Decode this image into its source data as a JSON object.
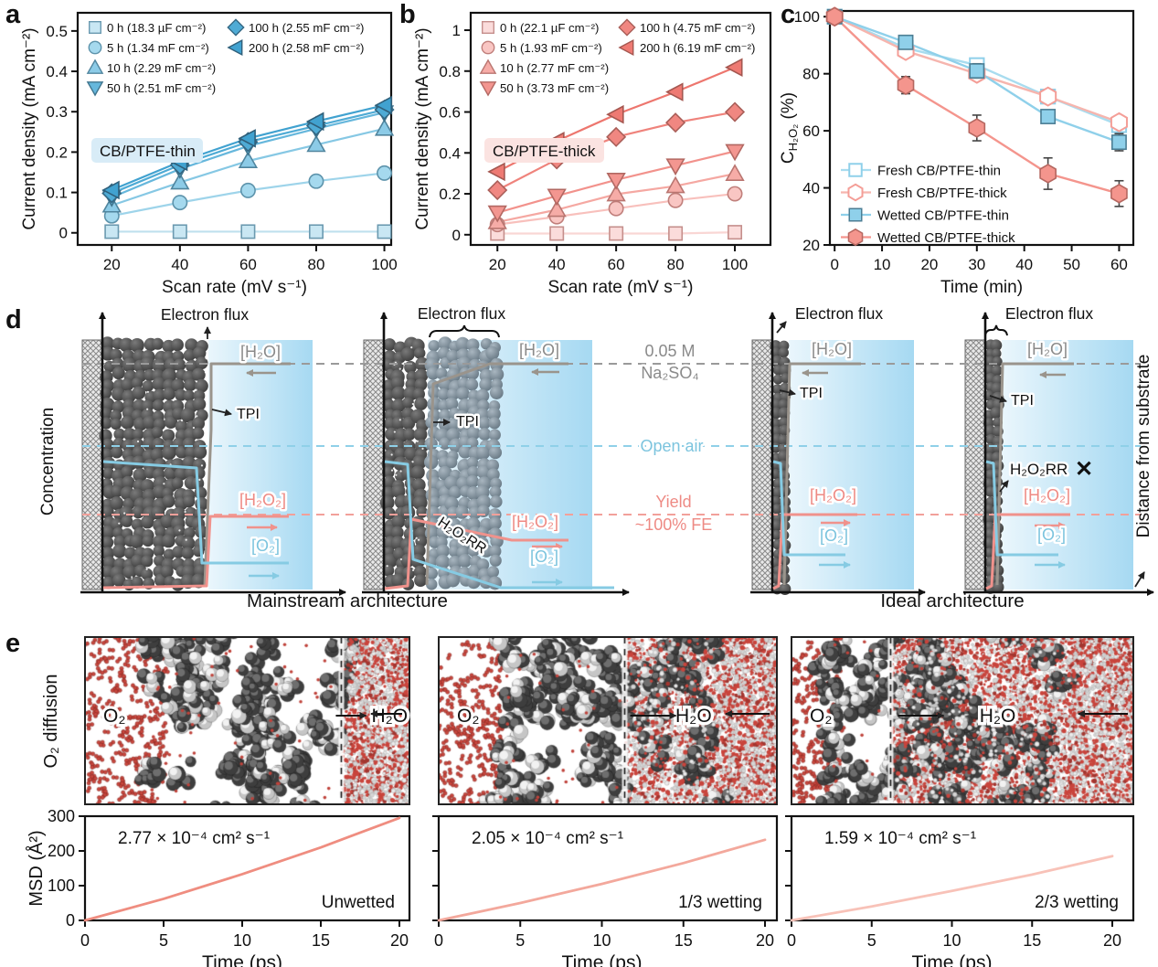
{
  "letters": {
    "a": "a",
    "b": "b",
    "c": "c",
    "d": "d",
    "e": "e"
  },
  "chart_data": [
    {
      "id": "a",
      "type": "scatter",
      "title": "CB/PTFE-thin",
      "xlabel": "Scan rate (mV s⁻¹)",
      "ylabel": "Current density (mA cm⁻²)",
      "x": [
        20,
        40,
        60,
        80,
        100
      ],
      "xticks": [
        20,
        40,
        60,
        80,
        100
      ],
      "yticks": [
        0.0,
        0.1,
        0.2,
        0.3,
        0.4,
        0.5
      ],
      "xlim": [
        10,
        102
      ],
      "ylim": [
        -0.03,
        0.545
      ],
      "series": [
        {
          "name": "0 h (18.3 µF cm⁻²)",
          "marker": "square",
          "fill": "#c9e7f3",
          "stroke": "#6b9ab0",
          "line": "#bfe0ee",
          "values": [
            0.003,
            0.003,
            0.003,
            0.003,
            0.003
          ]
        },
        {
          "name": "5 h (1.34 mF cm⁻²)",
          "marker": "circle",
          "fill": "#a5d9ee",
          "stroke": "#5d93ab",
          "line": "#9ed4ea",
          "values": [
            0.042,
            0.075,
            0.105,
            0.128,
            0.148
          ]
        },
        {
          "name": "10 h (2.29 mF cm⁻²)",
          "marker": "triup",
          "fill": "#8ccbe7",
          "stroke": "#50859e",
          "line": "#86c8e4",
          "values": [
            0.068,
            0.125,
            0.178,
            0.218,
            0.258
          ]
        },
        {
          "name": "50 h (2.51 mF cm⁻²)",
          "marker": "tridown",
          "fill": "#66b7dc",
          "stroke": "#40758e",
          "line": "#66b7dc",
          "values": [
            0.088,
            0.158,
            0.215,
            0.258,
            0.298
          ]
        },
        {
          "name": "100 h (2.55 mF cm⁻²)",
          "marker": "diamond",
          "fill": "#4fabd5",
          "stroke": "#356884",
          "line": "#4fabd5",
          "values": [
            0.098,
            0.168,
            0.225,
            0.265,
            0.305
          ]
        },
        {
          "name": "200 h (2.58 mF cm⁻²)",
          "marker": "trileft",
          "fill": "#41a2d0",
          "stroke": "#2f5f7a",
          "line": "#41a2d0",
          "values": [
            0.106,
            0.176,
            0.234,
            0.276,
            0.316
          ]
        }
      ]
    },
    {
      "id": "b",
      "type": "scatter",
      "title": "CB/PTFE-thick",
      "xlabel": "Scan rate (mV s⁻¹)",
      "ylabel": "Current density (mA cm⁻²)",
      "x": [
        20,
        40,
        60,
        80,
        100
      ],
      "xticks": [
        20,
        40,
        60,
        80,
        100
      ],
      "yticks": [
        0.0,
        0.2,
        0.4,
        0.6,
        0.8,
        1.0
      ],
      "xlim": [
        11,
        112
      ],
      "ylim": [
        -0.05,
        1.085
      ],
      "series": [
        {
          "name": "0 h (22.1 µF cm⁻²)",
          "marker": "square",
          "fill": "#fbdcdb",
          "stroke": "#c58f8c",
          "line": "#f9d6d4",
          "values": [
            0.006,
            0.006,
            0.006,
            0.006,
            0.012
          ]
        },
        {
          "name": "5 h (1.93 mF cm⁻²)",
          "marker": "circle",
          "fill": "#f9c6c3",
          "stroke": "#c07f7b",
          "line": "#f8c0bc",
          "values": [
            0.05,
            0.088,
            0.128,
            0.168,
            0.2
          ]
        },
        {
          "name": "10 h (2.77 mF cm⁻²)",
          "marker": "triup",
          "fill": "#f6aca7",
          "stroke": "#b97570",
          "line": "#f5a8a2",
          "values": [
            0.062,
            0.122,
            0.198,
            0.238,
            0.298
          ]
        },
        {
          "name": "50 h (3.73 mF cm⁻²)",
          "marker": "tridown",
          "fill": "#f39690",
          "stroke": "#b26862",
          "line": "#f2928c",
          "values": [
            0.108,
            0.19,
            0.268,
            0.338,
            0.408
          ]
        },
        {
          "name": "100 h (4.75 mF cm⁻²)",
          "marker": "diamond",
          "fill": "#f08781",
          "stroke": "#aa5f59",
          "line": "#ef837c",
          "values": [
            0.218,
            0.368,
            0.478,
            0.548,
            0.6
          ]
        },
        {
          "name": "200 h (6.19 mF cm⁻²)",
          "marker": "trileft",
          "fill": "#ee7a73",
          "stroke": "#a45750",
          "line": "#ed766e",
          "values": [
            0.308,
            0.458,
            0.588,
            0.698,
            0.818
          ]
        }
      ]
    },
    {
      "id": "c",
      "type": "line",
      "xlabel": "Time (min)",
      "ylabel_parts": [
        "C",
        "H₂O₂",
        " (%)"
      ],
      "x": [
        0,
        15,
        30,
        45,
        60
      ],
      "xticks": [
        0,
        10,
        20,
        30,
        40,
        50,
        60
      ],
      "yticks": [
        20,
        40,
        60,
        80,
        100
      ],
      "xlim": [
        -1,
        63
      ],
      "ylim": [
        20,
        102
      ],
      "series": [
        {
          "name": "Fresh CB/PTFE-thin",
          "marker": "square",
          "open": true,
          "line": "#a8dcef",
          "stroke": "#8fd0ea",
          "fill": "#ffffff",
          "err_color": "#8fd0ea",
          "values": [
            100,
            89,
            83,
            72,
            62
          ],
          "err": [
            0,
            1.5,
            2,
            2,
            2
          ]
        },
        {
          "name": "Fresh CB/PTFE-thick",
          "marker": "hex",
          "open": true,
          "line": "#f6b5ae",
          "stroke": "#f49e97",
          "fill": "#ffffff",
          "err_color": "#f4a09a",
          "values": [
            100,
            88,
            80,
            72,
            63
          ],
          "err": [
            0,
            2,
            2,
            2,
            2
          ]
        },
        {
          "name": "Wetted CB/PTFE-thin",
          "marker": "square",
          "open": false,
          "line": "#8fd0ea",
          "stroke": "#4c7e94",
          "fill": "#8fd0ea",
          "err_color": "#444444",
          "values": [
            100,
            91,
            81,
            65,
            56
          ],
          "err": [
            0,
            2,
            2.5,
            2,
            3
          ]
        },
        {
          "name": "Wetted CB/PTFE-thick",
          "marker": "hex",
          "open": false,
          "line": "#f4958d",
          "stroke": "#b56760",
          "fill": "#f4958d",
          "err_color": "#444444",
          "values": [
            100,
            76,
            61,
            45,
            38
          ],
          "err": [
            0,
            3,
            4.5,
            5.5,
            4.5
          ]
        }
      ]
    },
    {
      "id": "msd1",
      "type": "line",
      "xlabel": "Time (ps)",
      "ylabel": "MSD (Å²)",
      "x": [
        0,
        5,
        10,
        15,
        20
      ],
      "values": [
        0,
        62,
        133,
        210,
        295
      ],
      "xlim": [
        0,
        20
      ],
      "ylim": [
        0,
        300
      ],
      "yticks": [
        0,
        100,
        200,
        300
      ],
      "xticks": [
        0,
        5,
        10,
        15,
        20
      ],
      "annotation": "2.77 × 10⁻⁴ cm² s⁻¹",
      "label": "Unwetted",
      "color": "#ef8d80"
    },
    {
      "id": "msd2",
      "type": "line",
      "xlabel": "Time (ps)",
      "ylabel": "MSD (Å²)",
      "x": [
        0,
        5,
        10,
        15,
        20
      ],
      "values": [
        0,
        50,
        105,
        165,
        232
      ],
      "xlim": [
        0,
        20
      ],
      "ylim": [
        0,
        300
      ],
      "yticks": [
        0,
        100,
        200,
        300
      ],
      "xticks": [
        0,
        5,
        10,
        15,
        20
      ],
      "annotation": "2.05 × 10⁻⁴ cm² s⁻¹",
      "label": "1/3 wetting",
      "color": "#f3a89c"
    },
    {
      "id": "msd3",
      "type": "line",
      "xlabel": "Time (ps)",
      "ylabel": "MSD (Å²)",
      "x": [
        0,
        5,
        10,
        15,
        20
      ],
      "values": [
        0,
        40,
        85,
        132,
        185
      ],
      "xlim": [
        0,
        20
      ],
      "ylim": [
        0,
        300
      ],
      "yticks": [
        0,
        100,
        200,
        300
      ],
      "xticks": [
        0,
        5,
        10,
        15,
        20
      ],
      "annotation": "1.59 × 10⁻⁴ cm² s⁻¹",
      "label": "2/3 wetting",
      "color": "#f8c2b8"
    }
  ],
  "panel_d": {
    "electron_flux": "Electron flux",
    "h2o": "[H₂O]",
    "tpi": "TPI",
    "h2o2": "[H₂O₂]",
    "o2": "[O₂]",
    "h2o2rr": "H₂O₂RR",
    "cross": "✕",
    "electrolyte_l1": "0.05 M",
    "electrolyte_l2": "Na₂SO₄",
    "open_air": "Open air",
    "yield_l1": "Yield",
    "yield_l2": "~100% FE",
    "caption_left": "Mainstream architecture",
    "caption_right": "Ideal architecture",
    "y_axis": "Concentration",
    "right_axis": "Distance from substrate"
  },
  "panel_e": {
    "row_label": "O₂ diffusion",
    "o2": "O₂",
    "h2o": "H₂O"
  }
}
